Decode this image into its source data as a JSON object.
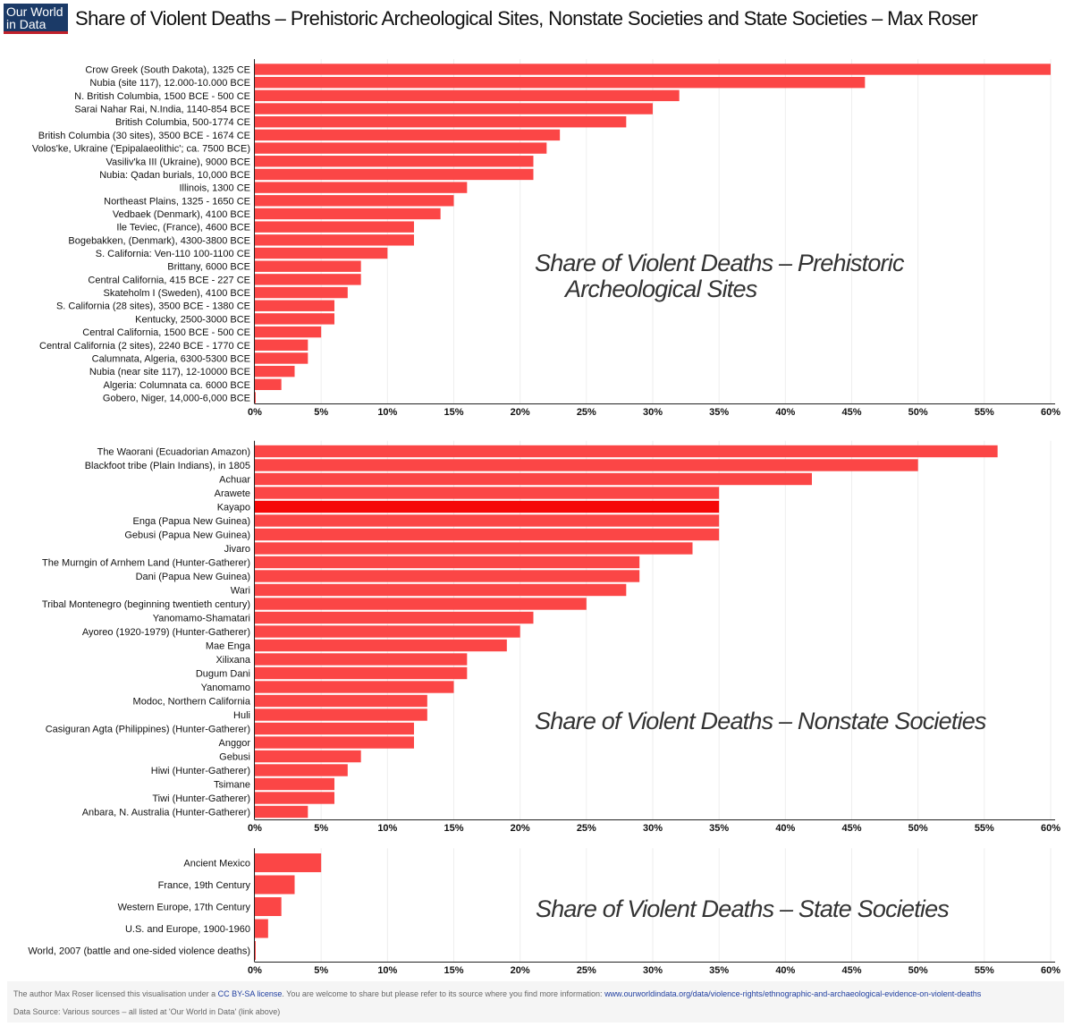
{
  "header": {
    "logo_line1": "Our World",
    "logo_line2": "in Data",
    "title": "Share of Violent Deaths – Prehistoric Archeological Sites, Nonstate Societies and State Societies – Max Roser"
  },
  "colors": {
    "bar": "#fb4646",
    "bar_highlight": "#f50808",
    "axis": "#222222",
    "grid": "#eeeeee"
  },
  "chart_data": [
    {
      "type": "bar",
      "orientation": "horizontal",
      "title_lines": [
        "Share of Violent Deaths – Prehistoric",
        "Archeological Sites"
      ],
      "xlim": [
        0,
        60
      ],
      "ticks": [
        "0%",
        "5%",
        "10%",
        "15%",
        "20%",
        "25%",
        "30%",
        "35%",
        "40%",
        "45%",
        "50%",
        "55%",
        "60%"
      ],
      "categories": [
        "Crow Greek (South Dakota), 1325 CE",
        "Nubia (site 117), 12.000-10.000 BCE",
        "N. British Columbia, 1500 BCE - 500 CE",
        "Sarai Nahar Rai, N.India, 1140-854 BCE",
        "British Columbia, 500-1774 CE",
        "British Columbia (30 sites), 3500 BCE - 1674 CE",
        "Volos'ke, Ukraine ('Epipalaeolithic'; ca. 7500 BCE)",
        "Vasiliv'ka III (Ukraine), 9000 BCE",
        "Nubia: Qadan burials, 10,000 BCE",
        "Illinois, 1300 CE",
        "Northeast Plains, 1325 - 1650 CE",
        "Vedbaek (Denmark), 4100 BCE",
        "Ile Teviec, (France), 4600 BCE",
        "Bogebakken, (Denmark), 4300-3800 BCE",
        "S. California: Ven-110 100-1100 CE",
        "Brittany, 6000 BCE",
        "Central California, 415 BCE - 227 CE",
        "Skateholm I (Sweden), 4100 BCE",
        "S. California (28 sites), 3500 BCE - 1380 CE",
        "Kentucky, 2500-3000 BCE",
        "Central California, 1500 BCE - 500 CE",
        "Central California (2 sites), 2240 BCE - 1770 CE",
        "Calumnata, Algeria, 6300-5300 BCE",
        "Nubia (near site 117), 12-10000 BCE",
        "Algeria: Columnata ca. 6000 BCE",
        "Gobero, Niger, 14,000-6,000 BCE"
      ],
      "values": [
        60,
        46,
        32,
        30,
        28,
        23,
        22,
        21,
        21,
        16,
        15,
        14,
        12,
        12,
        10,
        8,
        8,
        7,
        6,
        6,
        5,
        4,
        4,
        3,
        2,
        0
      ]
    },
    {
      "type": "bar",
      "orientation": "horizontal",
      "title_lines": [
        "Share of Violent Deaths – Nonstate Societies"
      ],
      "xlim": [
        0,
        60
      ],
      "ticks": [
        "0%",
        "5%",
        "10%",
        "15%",
        "20%",
        "25%",
        "30%",
        "35%",
        "40%",
        "45%",
        "50%",
        "55%",
        "60%"
      ],
      "categories": [
        "The Waorani (Ecuadorian Amazon)",
        "Blackfoot tribe (Plain Indians), in 1805",
        "Achuar",
        "Arawete",
        "Kayapo",
        "Enga (Papua New Guinea)",
        "Gebusi (Papua New Guinea)",
        "Jivaro",
        "The Murngin of Arnhem Land (Hunter-Gatherer)",
        "Dani (Papua New Guinea)",
        "Wari",
        "Tribal Montenegro (beginning twentieth century)",
        "Yanomamo-Shamatari",
        "Ayoreo (1920-1979) (Hunter-Gatherer)",
        "Mae Enga",
        "Xilixana",
        "Dugum Dani",
        "Yanomamo",
        "Modoc, Northern California",
        "Huli",
        "Casiguran Agta (Philippines) (Hunter-Gatherer)",
        "Anggor",
        "Gebusi",
        "Hiwi (Hunter-Gatherer)",
        "Tsimane",
        "Tiwi (Hunter-Gatherer)",
        "Anbara, N. Australia (Hunter-Gatherer)"
      ],
      "values": [
        56,
        50,
        42,
        35,
        35,
        35,
        35,
        33,
        29,
        29,
        28,
        25,
        21,
        20,
        19,
        16,
        16,
        15,
        13,
        13,
        12,
        12,
        8,
        7,
        6,
        6,
        4
      ],
      "highlight": [
        "Kayapo"
      ]
    },
    {
      "type": "bar",
      "orientation": "horizontal",
      "title_lines": [
        "Share of Violent Deaths – State Societies"
      ],
      "xlim": [
        0,
        60
      ],
      "ticks": [
        "0%",
        "5%",
        "10%",
        "15%",
        "20%",
        "25%",
        "30%",
        "35%",
        "40%",
        "45%",
        "50%",
        "55%",
        "60%"
      ],
      "categories": [
        "Ancient Mexico",
        "France, 19th Century",
        "Western Europe, 17th Century",
        "U.S. and Europe, 1900-1960",
        "World, 2007 (battle and one-sided violence deaths)"
      ],
      "values": [
        5,
        3,
        2,
        1,
        0.04
      ]
    }
  ],
  "footer": {
    "license_pre": "The author Max Roser licensed this visualisation under a",
    "license_link": "CC BY-SA license",
    "license_post": ". You are welcome to share but please refer to its source where you find more information:",
    "source_url": "www.ourworldindata.org/data/violence-rights/ethnographic-and-archaeological-evidence-on-violent-deaths",
    "data_source": "Data Source: Various sources – all listed at 'Our World in Data' (link above)"
  }
}
